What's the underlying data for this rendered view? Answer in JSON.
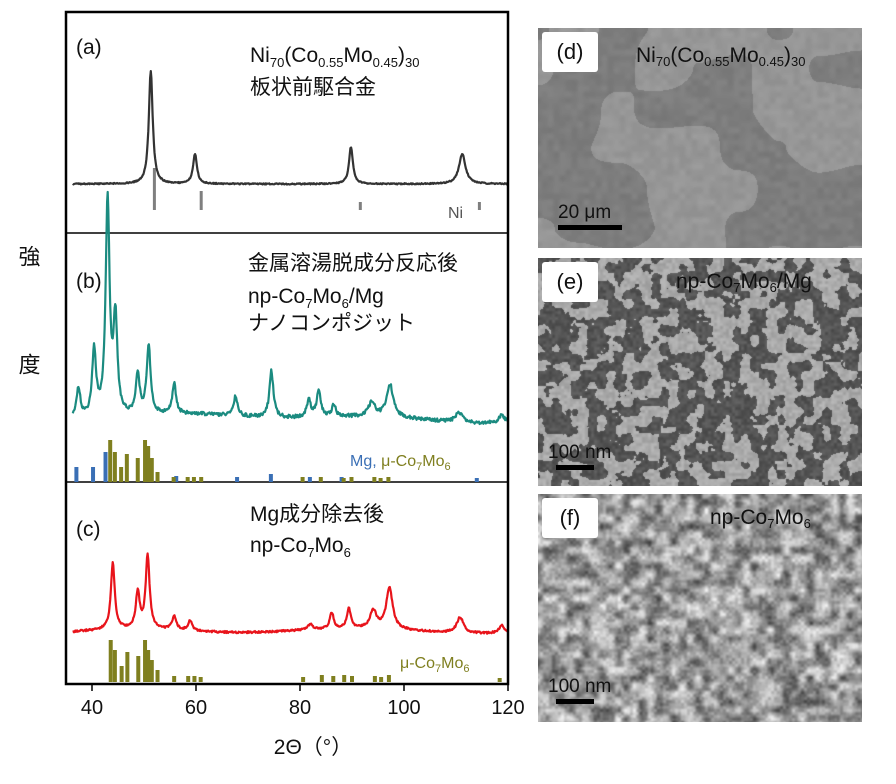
{
  "chart_data": {
    "type": "line",
    "xlabel": "2Θ（°）",
    "ylabel": "強 度",
    "xlim": [
      35,
      120
    ],
    "xticks": [
      40,
      60,
      80,
      100,
      120
    ],
    "panels": [
      {
        "letter": "(a)",
        "label_lines": [
          "Ni70(Co0.55Mo0.45)30",
          "板状前駆合金"
        ],
        "series": [
          {
            "color": "#333333",
            "peaks": [
              [
                51.3,
                113
              ],
              [
                59.8,
                30
              ],
              [
                89.8,
                37
              ],
              [
                111.2,
                30
              ]
            ]
          }
        ],
        "references": [
          {
            "name": "Ni",
            "color": "#7f7f7f",
            "lines": [
              [
                52.0,
                42
              ],
              [
                61.0,
                19
              ],
              [
                91.6,
                8
              ],
              [
                114.5,
                8
              ]
            ]
          }
        ]
      },
      {
        "letter": "(b)",
        "label_lines": [
          "金属溶湯脱成分反応後",
          "np-Co7Mo6/Mg",
          "ナノコンポジット"
        ],
        "series": [
          {
            "color": "#1b8b80",
            "peaks": [
              [
                37.4,
                30
              ],
              [
                40.4,
                66
              ],
              [
                43.0,
                215
              ],
              [
                44.5,
                95
              ],
              [
                48.8,
                40
              ],
              [
                50.9,
                68
              ],
              [
                55.8,
                30
              ],
              [
                67.6,
                20
              ],
              [
                74.5,
                47
              ],
              [
                81.7,
                18
              ],
              [
                83.6,
                27
              ],
              [
                86.5,
                12
              ],
              [
                93.8,
                14
              ],
              [
                97.3,
                33
              ],
              [
                110.6,
                10
              ],
              [
                118.8,
                8
              ]
            ]
          }
        ],
        "references": [
          {
            "name": "Mg",
            "color": "#3a6fb5",
            "lines": [
              [
                37.0,
                15
              ],
              [
                40.2,
                15
              ],
              [
                42.6,
                30
              ],
              [
                56.2,
                6
              ],
              [
                67.9,
                5
              ],
              [
                74.4,
                8
              ],
              [
                81.9,
                5
              ],
              [
                88.0,
                5
              ],
              [
                114.0,
                4
              ]
            ]
          },
          {
            "name": "μ-Co7Mo6",
            "color": "#7f7f1f",
            "lines": [
              [
                43.5,
                42
              ],
              [
                44.4,
                30
              ],
              [
                45.6,
                15
              ],
              [
                46.7,
                28
              ],
              [
                48.8,
                24
              ],
              [
                50.2,
                42
              ],
              [
                50.8,
                36
              ],
              [
                51.5,
                24
              ],
              [
                52.6,
                10
              ],
              [
                55.7,
                5
              ],
              [
                58.4,
                5
              ],
              [
                59.6,
                5
              ],
              [
                61.0,
                5
              ],
              [
                80.5,
                5
              ],
              [
                84.0,
                5
              ],
              [
                88.4,
                4
              ],
              [
                89.9,
                5
              ],
              [
                94.3,
                5
              ],
              [
                95.5,
                4
              ],
              [
                97.0,
                5
              ]
            ]
          }
        ],
        "reference_legend": "Mg, μ-Co7Mo6"
      },
      {
        "letter": "(c)",
        "label_lines": [
          "Mg成分除去後",
          "np-Co7Mo6"
        ],
        "series": [
          {
            "color": "#e8141b",
            "peaks": [
              [
                44.0,
                66
              ],
              [
                48.8,
                36
              ],
              [
                50.7,
                73
              ],
              [
                55.8,
                14
              ],
              [
                58.9,
                10
              ],
              [
                82.0,
                6
              ],
              [
                86.1,
                16
              ],
              [
                89.4,
                20
              ],
              [
                94.1,
                18
              ],
              [
                97.2,
                41
              ],
              [
                110.8,
                16
              ],
              [
                118.8,
                8
              ]
            ]
          }
        ],
        "references": [
          {
            "name": "μ-Co7Mo6",
            "color": "#7f7f1f",
            "lines": [
              [
                43.6,
                42
              ],
              [
                44.4,
                32
              ],
              [
                45.7,
                16
              ],
              [
                46.8,
                30
              ],
              [
                48.9,
                26
              ],
              [
                50.2,
                42
              ],
              [
                50.8,
                32
              ],
              [
                51.5,
                22
              ],
              [
                52.6,
                12
              ],
              [
                55.8,
                6
              ],
              [
                58.5,
                6
              ],
              [
                59.7,
                6
              ],
              [
                60.9,
                5
              ],
              [
                80.6,
                5
              ],
              [
                84.2,
                7
              ],
              [
                86.4,
                6
              ],
              [
                88.5,
                7
              ],
              [
                90.0,
                6
              ],
              [
                94.4,
                6
              ],
              [
                95.6,
                5
              ],
              [
                97.1,
                7
              ],
              [
                118.4,
                4
              ]
            ]
          }
        ],
        "reference_legend": "μ-Co7Mo6"
      }
    ]
  },
  "sem_panels": [
    {
      "letter": "(d)",
      "title": "Ni70(Co0.55Mo0.45)30",
      "scale_bar": "20 μm"
    },
    {
      "letter": "(e)",
      "title": "np-Co7Mo6/Mg",
      "scale_bar": "100 nm"
    },
    {
      "letter": "(f)",
      "title": "np-Co7Mo6",
      "scale_bar": "100 nm"
    }
  ]
}
